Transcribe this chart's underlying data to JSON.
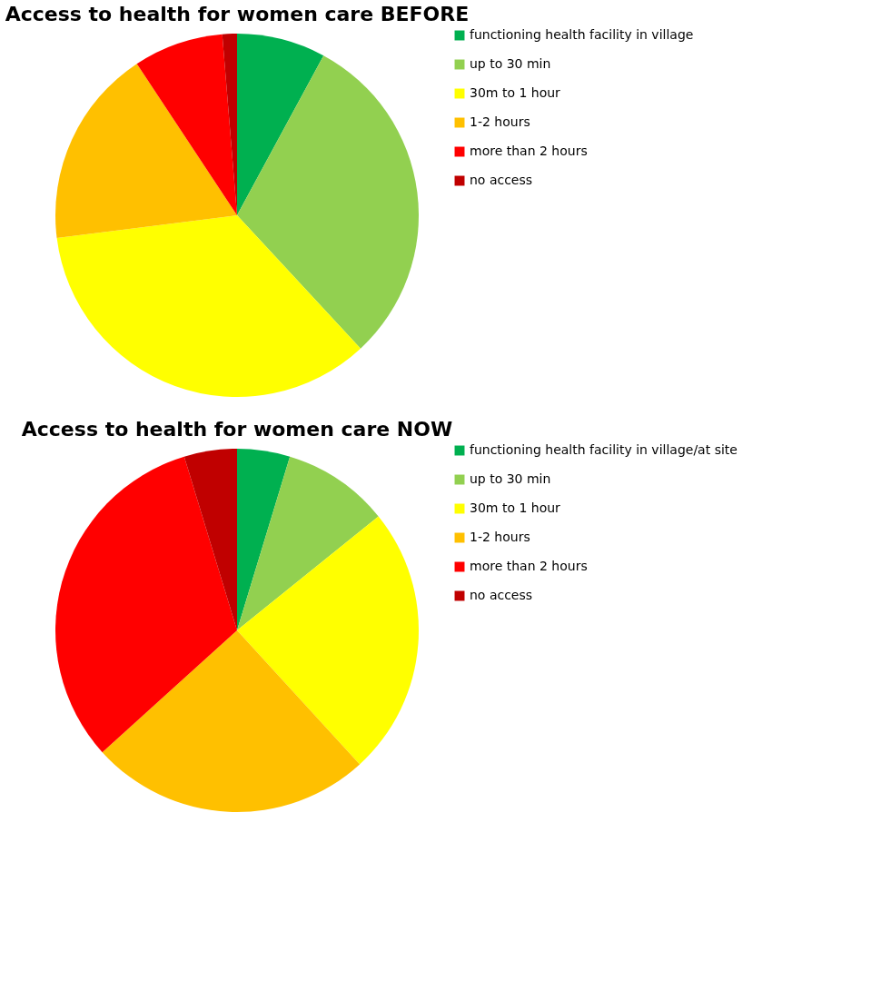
{
  "chart_data": [
    {
      "type": "pie",
      "title": "Access to health for women care BEFORE",
      "legend": "right",
      "categories": [
        "functioning health facility in village",
        "up to 30 min",
        "30m to 1 hour",
        "1-2 hours",
        "more than 2 hours",
        "no access"
      ],
      "values": [
        7.9,
        30.2,
        34.9,
        17.7,
        8.0,
        1.3
      ],
      "colors": [
        "#00b050",
        "#92d050",
        "#ffff00",
        "#ffc000",
        "#ff0000",
        "#c00000"
      ]
    },
    {
      "type": "pie",
      "title": "Access to health for women care NOW",
      "legend": "right",
      "categories": [
        "functioning health facility in village/at site",
        "up to 30 min",
        "30m to 1 hour",
        "1-2 hours",
        "more than 2 hours",
        "no access"
      ],
      "values": [
        4.7,
        9.5,
        24.0,
        25.1,
        32.0,
        4.7
      ],
      "colors": [
        "#00b050",
        "#92d050",
        "#ffff00",
        "#ffc000",
        "#ff0000",
        "#c00000"
      ]
    }
  ]
}
